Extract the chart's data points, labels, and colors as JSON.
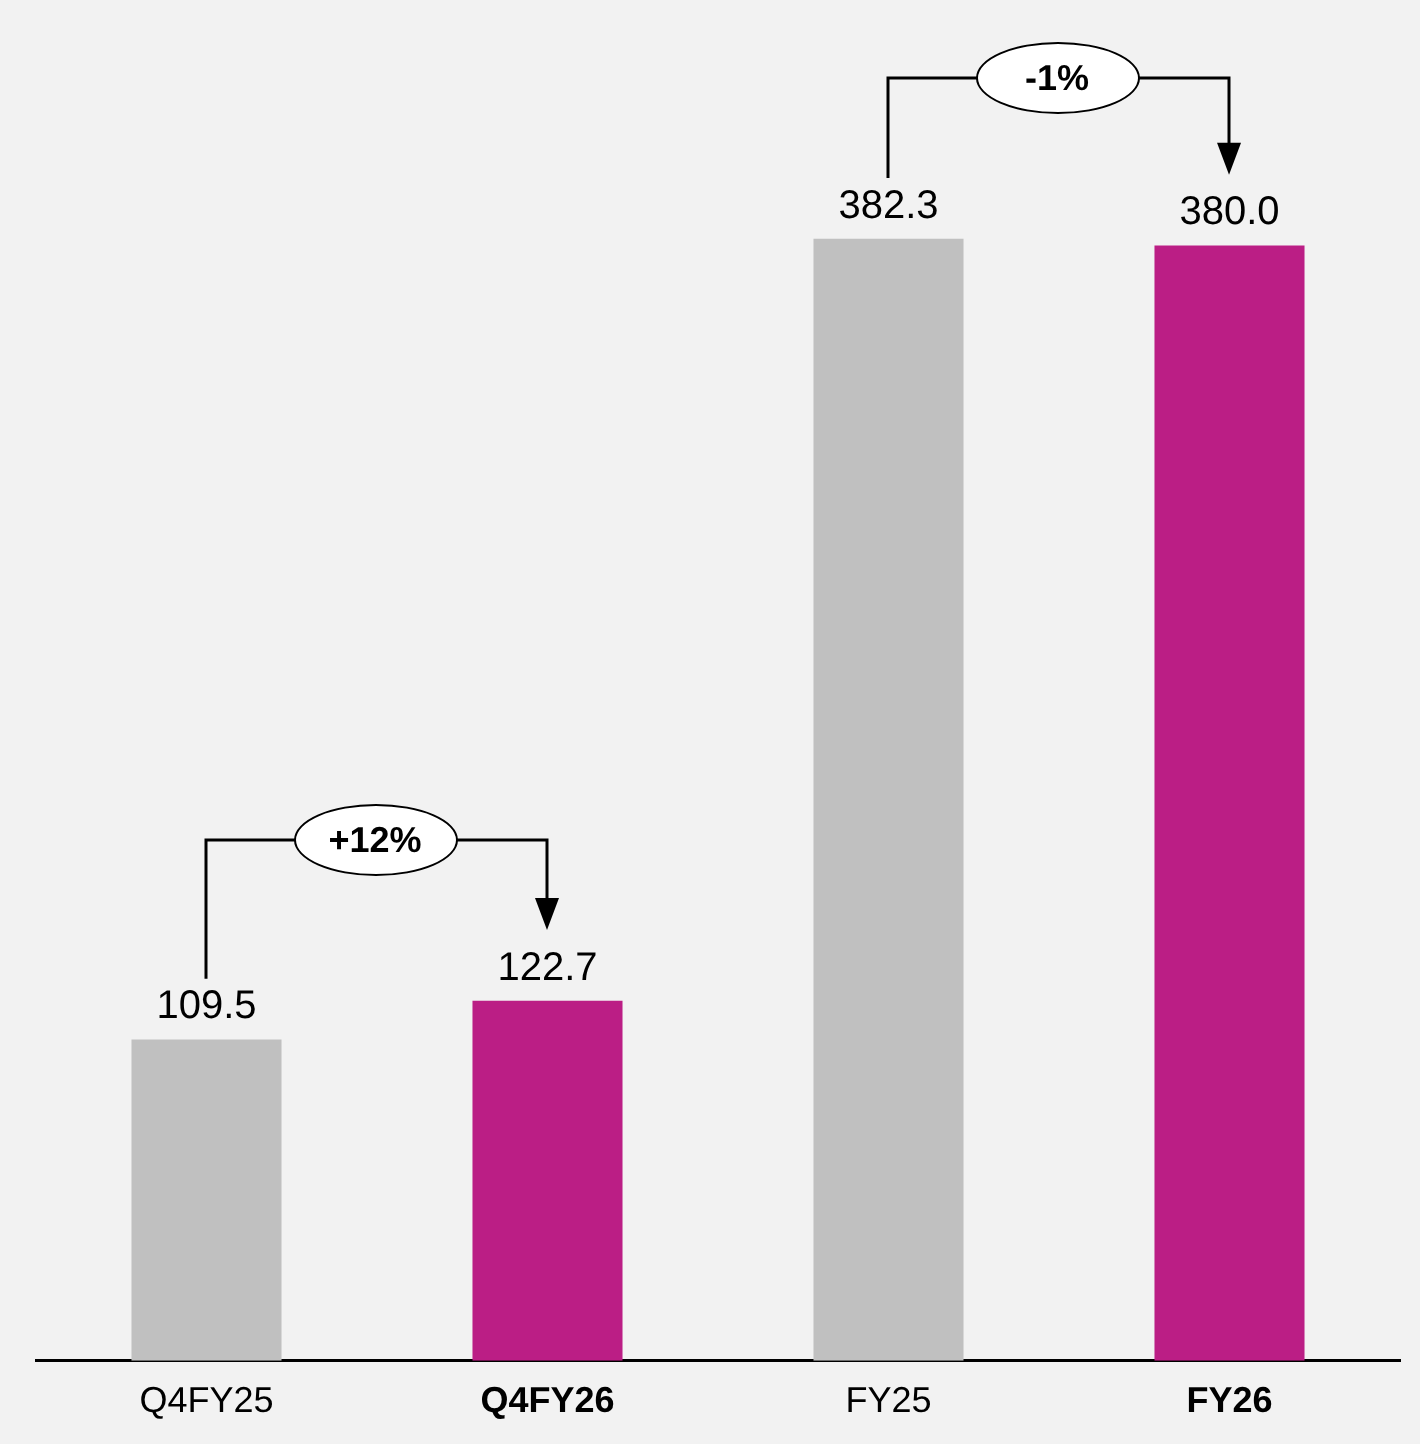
{
  "chart_data": {
    "type": "bar",
    "categories": [
      "Q4FY25",
      "Q4FY26",
      "FY25",
      "FY26"
    ],
    "values": [
      109.5,
      122.7,
      382.3,
      380.0
    ],
    "colors": [
      "#c0c0c0",
      "#bb1e85",
      "#c0c0c0",
      "#bb1e85"
    ],
    "relative": false,
    "value_labels": [
      "109.5",
      "122.7",
      "382.3",
      "380.0"
    ],
    "grid": false,
    "legend": false,
    "annotations": [
      "+12%",
      "-1%"
    ]
  }
}
